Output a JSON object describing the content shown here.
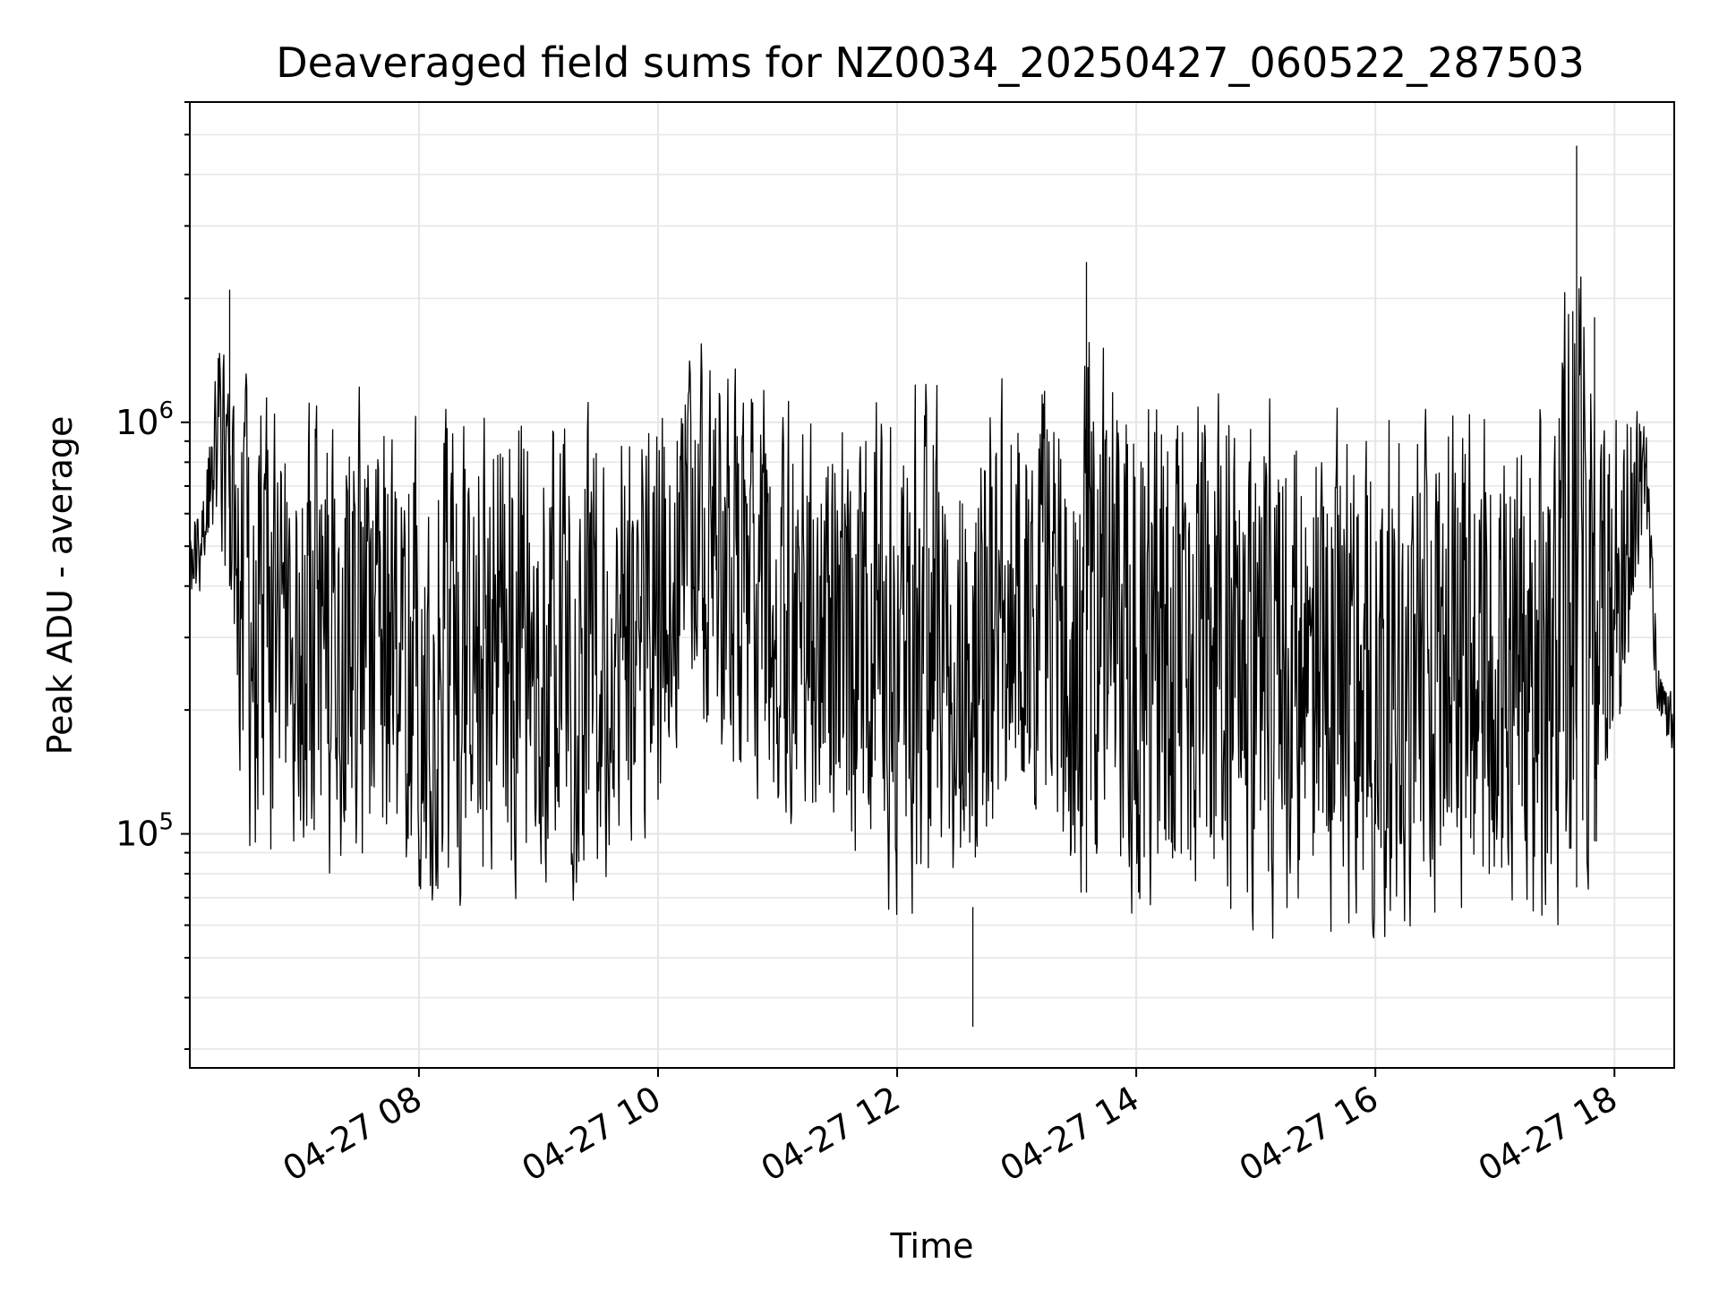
{
  "chart_data": {
    "type": "line",
    "title": "Deaveraged field sums for NZ0034_20250427_060522_287503",
    "xlabel": "Time",
    "ylabel": "Peak ADU - average",
    "x_axis": {
      "kind": "datetime",
      "range": [
        "2025-04-27 06:05",
        "2025-04-27 18:30"
      ],
      "ticks": [
        {
          "value": "2025-04-27 08:00",
          "label": "04-27 08"
        },
        {
          "value": "2025-04-27 10:00",
          "label": "04-27 10"
        },
        {
          "value": "2025-04-27 12:00",
          "label": "04-27 12"
        },
        {
          "value": "2025-04-27 14:00",
          "label": "04-27 14"
        },
        {
          "value": "2025-04-27 16:00",
          "label": "04-27 16"
        },
        {
          "value": "2025-04-27 18:00",
          "label": "04-27 18"
        }
      ],
      "tick_label_rotation_deg": 30
    },
    "y_axis": {
      "scale": "log",
      "range": [
        27000,
        6000000
      ],
      "ticks": [
        {
          "value": 100000,
          "base": "10",
          "exp": "5"
        },
        {
          "value": 1000000,
          "base": "10",
          "exp": "6"
        }
      ]
    },
    "grid": true,
    "line_color": "#000000",
    "grid_color": "#e6e6e6",
    "series": [
      {
        "x": [
          "2025-04-27 06:05",
          "2025-04-27 06:10",
          "2025-04-27 06:20",
          "2025-04-27 06:25",
          "2025-04-27 06:30",
          "2025-04-27 06:35",
          "2025-04-27 06:45",
          "2025-04-27 06:50",
          "2025-04-27 07:00",
          "2025-04-27 07:15",
          "2025-04-27 07:30",
          "2025-04-27 07:45",
          "2025-04-27 08:00",
          "2025-04-27 08:30",
          "2025-04-27 08:45",
          "2025-04-27 09:00",
          "2025-04-27 09:30",
          "2025-04-27 10:00",
          "2025-04-27 10:15",
          "2025-04-27 10:30",
          "2025-04-27 11:00",
          "2025-04-27 11:30",
          "2025-04-27 12:00",
          "2025-04-27 12:30",
          "2025-04-27 12:40",
          "2025-04-27 13:00",
          "2025-04-27 13:30",
          "2025-04-27 13:35",
          "2025-04-27 14:00",
          "2025-04-27 14:30",
          "2025-04-27 15:00",
          "2025-04-27 15:30",
          "2025-04-27 16:00",
          "2025-04-27 16:30",
          "2025-04-27 17:00",
          "2025-04-27 17:30",
          "2025-04-27 17:40",
          "2025-04-27 17:50",
          "2025-04-27 18:00",
          "2025-04-27 18:15",
          "2025-04-27 18:22",
          "2025-04-27 18:30"
        ],
        "lower": [
          330000,
          360000,
          500000,
          250000,
          130000,
          60000,
          65000,
          80000,
          80000,
          65000,
          60000,
          58000,
          60000,
          55000,
          60000,
          70000,
          60000,
          90000,
          200000,
          120000,
          90000,
          80000,
          55000,
          48000,
          40000,
          90000,
          55000,
          45000,
          55000,
          55000,
          50000,
          48000,
          45000,
          55000,
          50000,
          45000,
          45000,
          60000,
          100000,
          500000,
          180000,
          140000
        ],
        "upper": [
          600000,
          700000,
          1800000,
          1300000,
          1400000,
          1500000,
          1300000,
          1300000,
          1300000,
          1400000,
          1400000,
          1300000,
          1400000,
          1400000,
          1400000,
          1300000,
          1300000,
          1300000,
          1800000,
          1700000,
          1400000,
          1300000,
          1400000,
          1600000,
          1500000,
          1500000,
          1400000,
          2450000,
          1400000,
          1400000,
          1400000,
          1300000,
          1300000,
          1300000,
          1300000,
          1300000,
          4700000,
          1800000,
          1400000,
          1300000,
          280000,
          220000
        ]
      }
    ]
  }
}
